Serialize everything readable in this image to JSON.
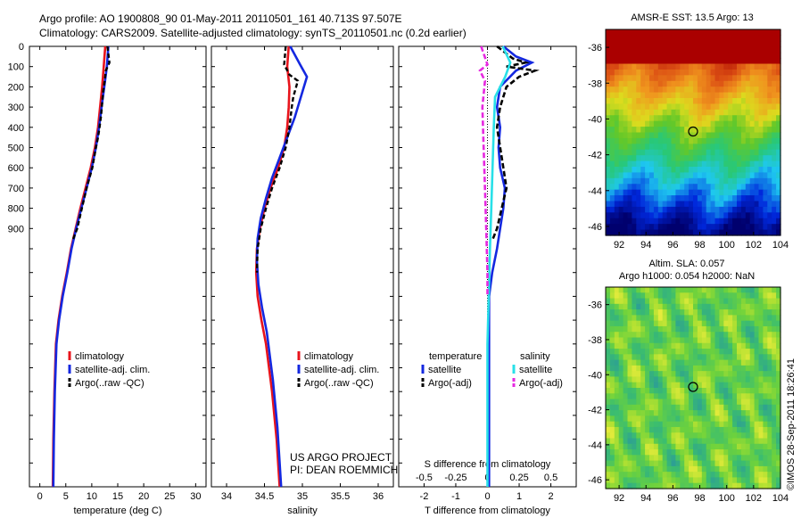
{
  "header": {
    "line1": "Argo profile: AO 1900808_90 01-May-2011 20110501_161 40.713S 97.507E",
    "line2": "Climatology: CARS2009. Satellite-adjusted climatology: synTS_20110501.nc (0.2d earlier)"
  },
  "credits": {
    "project": "US ARGO PROJECT",
    "pi": "PI: DEAN ROEMMICH",
    "stamp": "©IMOS 28-Sep-2011 18:26:41"
  },
  "colors": {
    "climatology": "#e8141c",
    "satellite": "#1428e0",
    "argo": "#000000",
    "sat_salinity": "#28e0e8",
    "argo_salinity": "#e628e0"
  },
  "chart_data": [
    {
      "type": "line",
      "id": "temperature",
      "xlabel": "temperature (deg C)",
      "xlim": [
        -2,
        32
      ],
      "xticks": [
        0,
        5,
        10,
        15,
        20,
        25,
        30
      ],
      "ylim": [
        0,
        2000
      ],
      "yticks": [
        0,
        100,
        200,
        300,
        400,
        500,
        600,
        700,
        800,
        900
      ],
      "ydir": "down",
      "legend": [
        "climatology",
        "satellite-adj. clim.",
        "Argo(..raw -QC)"
      ],
      "series": [
        {
          "name": "climatology",
          "x": [
            12.6,
            12.3,
            12.0,
            11.6,
            11.2,
            10.6,
            9.8,
            8.8,
            7.8,
            6.9,
            6.0,
            5.2,
            4.3,
            3.6,
            3.1,
            2.8,
            2.6,
            2.5
          ],
          "y": [
            0,
            100,
            200,
            300,
            400,
            500,
            600,
            700,
            800,
            900,
            1000,
            1100,
            1200,
            1300,
            1400,
            1600,
            1800,
            2000
          ]
        },
        {
          "name": "satellite-adj. clim.",
          "x": [
            13.2,
            12.9,
            12.4,
            11.9,
            11.4,
            10.8,
            10.0,
            9.0,
            8.0,
            7.0,
            6.1,
            5.3,
            4.4,
            3.7,
            3.2,
            2.9,
            2.7,
            2.6
          ],
          "y": [
            0,
            100,
            200,
            300,
            400,
            500,
            600,
            700,
            800,
            900,
            1000,
            1100,
            1200,
            1300,
            1400,
            1600,
            1800,
            2000
          ]
        },
        {
          "name": "Argo(..raw -QC)",
          "x": [
            13.0,
            13.4,
            12.7,
            12.5,
            12.2,
            12.0,
            11.8,
            11.5,
            11.2,
            10.8,
            10.1,
            9.0,
            8.1,
            7.2,
            6.3
          ],
          "y": [
            0,
            80,
            120,
            170,
            220,
            280,
            340,
            400,
            450,
            500,
            600,
            700,
            800,
            900,
            960
          ]
        }
      ]
    },
    {
      "type": "line",
      "id": "salinity",
      "xlabel": "salinity",
      "xlim": [
        33.8,
        36.2
      ],
      "xticks": [
        34,
        34.5,
        35,
        35.5,
        36
      ],
      "ylim": [
        0,
        2000
      ],
      "ydir": "down",
      "legend": [
        "climatology",
        "satellite-adj. clim.",
        "Argo(..raw -QC)"
      ],
      "series": [
        {
          "name": "climatology",
          "x": [
            34.82,
            34.8,
            34.83,
            34.82,
            34.8,
            34.76,
            34.68,
            34.58,
            34.5,
            34.44,
            34.4,
            34.39,
            34.41,
            34.46,
            34.52,
            34.6,
            34.66,
            34.7
          ],
          "y": [
            0,
            100,
            200,
            300,
            400,
            500,
            600,
            700,
            800,
            900,
            1000,
            1100,
            1200,
            1300,
            1400,
            1600,
            1800,
            2000
          ]
        },
        {
          "name": "satellite-adj. clim.",
          "x": [
            34.84,
            34.97,
            35.06,
            34.98,
            34.9,
            34.8,
            34.7,
            34.6,
            34.52,
            34.45,
            34.41,
            34.4,
            34.42,
            34.47,
            34.53,
            34.61,
            34.67,
            34.72
          ],
          "y": [
            0,
            90,
            150,
            250,
            350,
            450,
            550,
            650,
            750,
            850,
            950,
            1050,
            1150,
            1250,
            1350,
            1550,
            1750,
            2000
          ]
        },
        {
          "name": "Argo(..raw -QC)",
          "x": [
            34.78,
            34.76,
            34.83,
            34.94,
            34.88,
            34.86,
            34.83,
            34.78,
            34.7,
            34.6,
            34.52,
            34.45,
            34.41,
            34.4
          ],
          "y": [
            0,
            90,
            140,
            170,
            250,
            300,
            400,
            500,
            600,
            700,
            800,
            900,
            1000,
            1100
          ]
        }
      ]
    },
    {
      "type": "line",
      "id": "difference",
      "xlabel": "T difference from climatology",
      "xlabel_top": "S difference from climatology",
      "xlim": [
        -2.8,
        2.8
      ],
      "xticks": [
        -2,
        -1,
        0,
        1,
        2
      ],
      "xticks_top": [
        -0.5,
        -0.25,
        0,
        0.25,
        0.5
      ],
      "ylim": [
        0,
        2000
      ],
      "ydir": "down",
      "legend_headers": [
        "temperature",
        "salinity"
      ],
      "legend": [
        "satellite",
        "Argo(-adj)",
        "satellite",
        "Argo(-adj)"
      ],
      "series": [
        {
          "name": "satellite",
          "quantity": "temperature",
          "x": [
            0.5,
            0.9,
            1.4,
            0.9,
            0.4,
            0.3,
            0.4,
            0.35,
            0.4,
            0.55,
            0.5,
            0.4,
            0.3,
            0.15,
            0.05,
            0.05,
            0.05,
            0.05
          ],
          "y": [
            0,
            50,
            80,
            120,
            200,
            300,
            400,
            500,
            600,
            700,
            800,
            900,
            1000,
            1100,
            1200,
            1400,
            1700,
            2000
          ]
        },
        {
          "name": "Argo(-adj)",
          "quantity": "temperature",
          "x": [
            0.3,
            0.8,
            1.2,
            0.6,
            1.5,
            1.0,
            0.6,
            0.4,
            0.3,
            0.5,
            0.6,
            0.45,
            0.3,
            0.15
          ],
          "y": [
            0,
            60,
            80,
            100,
            120,
            150,
            200,
            300,
            400,
            600,
            700,
            800,
            900,
            960
          ]
        },
        {
          "name": "satellite",
          "quantity": "salinity",
          "x": [
            0.12,
            0.18,
            0.14,
            0.06,
            0.05,
            0.04,
            0.03,
            0.02,
            0.01,
            0.0,
            0.0,
            0.0
          ],
          "y": [
            0,
            80,
            150,
            250,
            400,
            600,
            800,
            1000,
            1200,
            1400,
            1700,
            2000
          ]
        },
        {
          "name": "Argo(-adj)",
          "quantity": "salinity",
          "x": [
            -0.05,
            0.0,
            -0.06,
            -0.02,
            -0.04,
            -0.03,
            -0.02,
            -0.01,
            0.0,
            0.0
          ],
          "y": [
            0,
            90,
            120,
            170,
            300,
            500,
            700,
            900,
            1100,
            1200
          ]
        }
      ]
    },
    {
      "type": "heatmap",
      "id": "sst-map",
      "title": "AMSR-E SST: 13.5 Argo: 13",
      "xlim": [
        91,
        104
      ],
      "xticks": [
        92,
        94,
        96,
        98,
        100,
        102,
        104
      ],
      "ylim": [
        -46.5,
        -35
      ],
      "yticks": [
        -36,
        -38,
        -40,
        -42,
        -44,
        -46
      ],
      "marker": {
        "lon": 97.5,
        "lat": -40.7
      }
    },
    {
      "type": "heatmap",
      "id": "sla-map",
      "title_lines": [
        "Altim. SLA: 0.057",
        "Argo h1000: 0.054 h2000: NaN"
      ],
      "xlim": [
        91,
        104
      ],
      "xticks": [
        92,
        94,
        96,
        98,
        100,
        102,
        104
      ],
      "ylim": [
        -46.5,
        -35
      ],
      "yticks": [
        -36,
        -38,
        -40,
        -42,
        -44,
        -46
      ],
      "marker": {
        "lon": 97.5,
        "lat": -40.7
      }
    }
  ]
}
